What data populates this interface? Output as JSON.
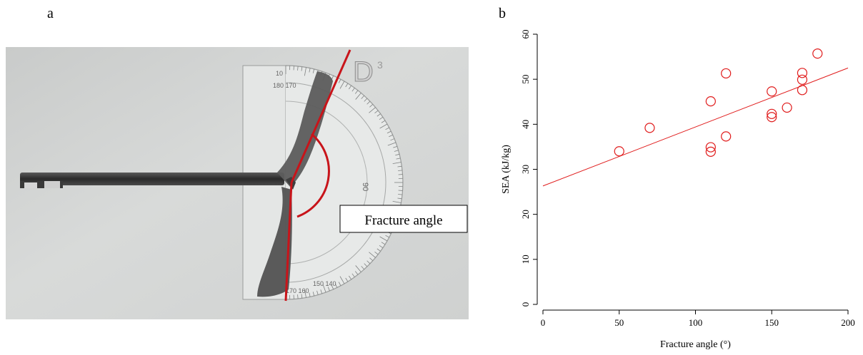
{
  "panel_a": {
    "label": "a",
    "annotation": "Fracture angle",
    "protractor_mark": "D",
    "protractor_mark_superscript": "3"
  },
  "panel_b": {
    "label": "b"
  },
  "colors": {
    "marker": "#e01b1b",
    "fit_line": "#e01b1b",
    "axis": "#000000",
    "overlay_line": "#c8141a"
  },
  "chart_data": {
    "type": "scatter",
    "xlabel": "Fracture angle (°)",
    "ylabel": "SEA (kJ/kg)",
    "xlim": [
      0,
      200
    ],
    "ylim": [
      0,
      60
    ],
    "xticks": [
      0,
      50,
      100,
      150,
      200
    ],
    "yticks": [
      0,
      10,
      20,
      30,
      40,
      50,
      60
    ],
    "grid": false,
    "marker": "open-circle",
    "points": [
      {
        "x": 50,
        "y": 34
      },
      {
        "x": 70,
        "y": 39.2
      },
      {
        "x": 110,
        "y": 45.1
      },
      {
        "x": 110,
        "y": 34.9
      },
      {
        "x": 110,
        "y": 33.9
      },
      {
        "x": 120,
        "y": 51.3
      },
      {
        "x": 120,
        "y": 37.3
      },
      {
        "x": 150,
        "y": 47.3
      },
      {
        "x": 150,
        "y": 42.3
      },
      {
        "x": 150,
        "y": 41.6
      },
      {
        "x": 160,
        "y": 43.7
      },
      {
        "x": 170,
        "y": 51.4
      },
      {
        "x": 170,
        "y": 49.9
      },
      {
        "x": 170,
        "y": 47.6
      },
      {
        "x": 180,
        "y": 55.7
      }
    ],
    "fit": {
      "slope": 0.131,
      "intercept": 26.3
    }
  }
}
